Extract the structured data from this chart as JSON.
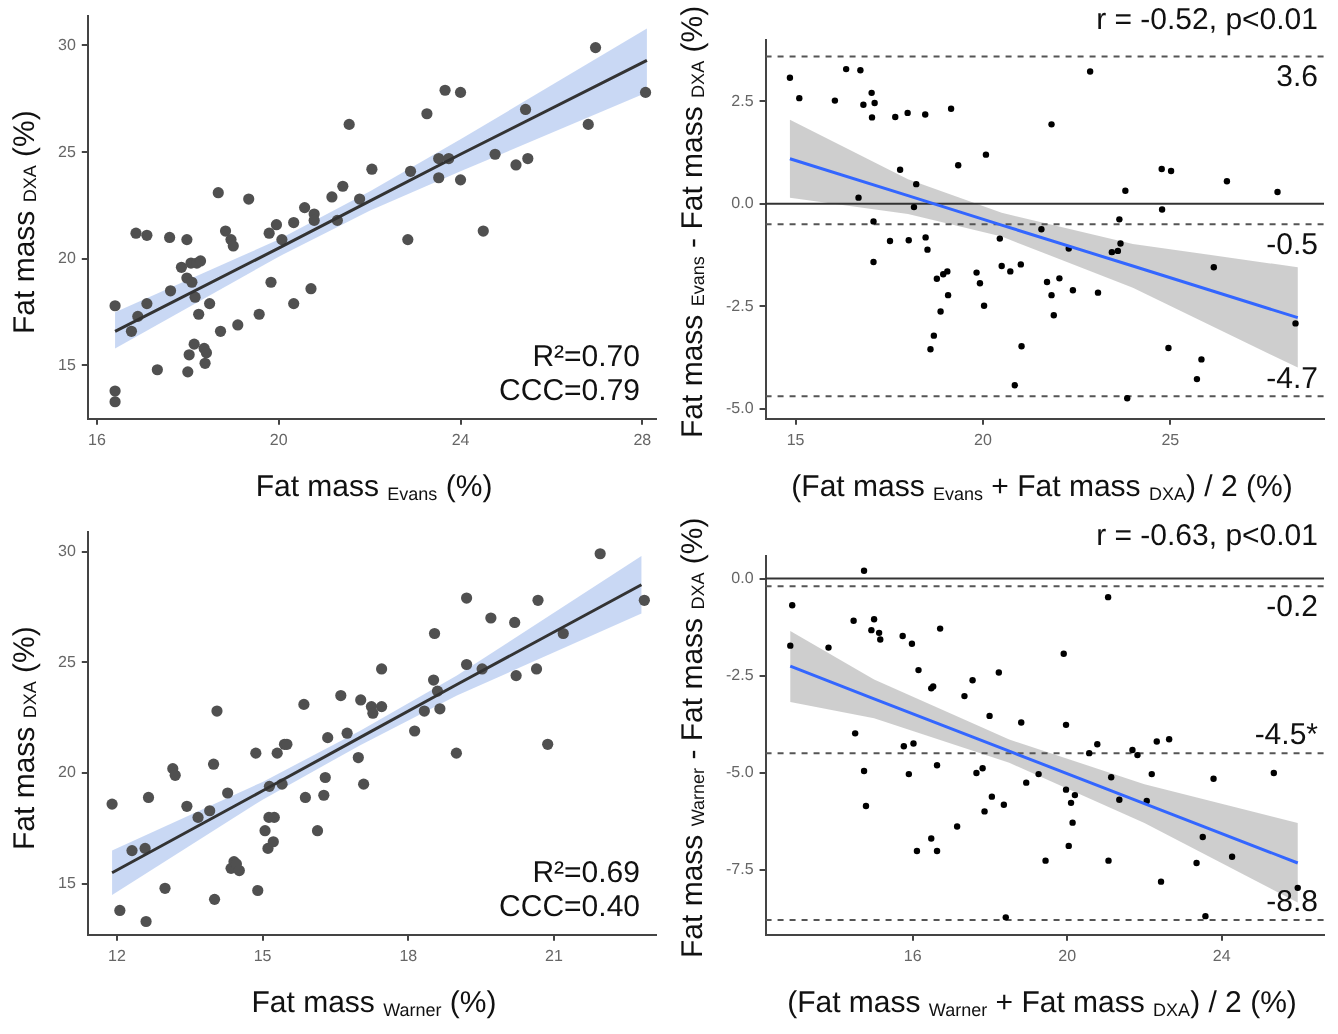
{
  "chart_data": [
    {
      "type": "scatter",
      "xlabel": "Fat mass $_{Evans}$ (%)",
      "ylabel": "Fat mass $_{DXA}$ (%)",
      "xlim": [
        15.8,
        28.3
      ],
      "ylim": [
        12.5,
        31.4
      ],
      "xticks": [
        16,
        20,
        24,
        28
      ],
      "yticks": [
        15,
        20,
        25,
        30
      ],
      "annotations": [
        "R²=0.70",
        "CCC=0.79"
      ],
      "series": [
        {
          "marker": "circle",
          "color": "#505050",
          "x": [
            16.4,
            16.4,
            16.4,
            16.76,
            16.86,
            16.9,
            17.1,
            17.1,
            17.33,
            17.6,
            17.62,
            17.86,
            17.98,
            17.98,
            18.0,
            18.03,
            18.07,
            18.09,
            18.14,
            18.16,
            18.2,
            18.24,
            18.28,
            18.36,
            18.38,
            18.41,
            18.48,
            18.67,
            18.72,
            18.83,
            18.95,
            19.0,
            19.1,
            19.34,
            19.57,
            19.79,
            19.83,
            19.95,
            20.07,
            20.33,
            20.33,
            20.57,
            20.71,
            20.78,
            20.78,
            21.17,
            21.29,
            21.41,
            21.55,
            21.78,
            22.05,
            22.84,
            22.9,
            23.26,
            23.52,
            23.52,
            23.66,
            23.74,
            24.0,
            24.0,
            24.5,
            24.76,
            25.22,
            25.43,
            25.48,
            26.81,
            26.97,
            28.07
          ],
          "values": [
            17.8,
            13.8,
            13.3,
            16.6,
            21.2,
            17.3,
            21.1,
            17.9,
            14.8,
            21.0,
            18.5,
            19.6,
            20.9,
            19.1,
            14.7,
            15.5,
            19.8,
            18.9,
            16.0,
            18.2,
            19.8,
            17.4,
            19.9,
            15.8,
            15.1,
            15.6,
            17.9,
            23.1,
            16.6,
            21.3,
            20.9,
            20.6,
            16.9,
            22.8,
            17.4,
            21.2,
            18.9,
            21.6,
            20.9,
            21.7,
            17.9,
            22.4,
            18.6,
            22.1,
            21.8,
            22.9,
            21.8,
            23.4,
            26.3,
            22.8,
            24.2,
            20.9,
            24.1,
            26.8,
            23.8,
            24.7,
            27.9,
            24.7,
            27.8,
            23.7,
            21.3,
            24.9,
            24.4,
            27.0,
            24.7,
            26.3,
            29.9,
            27.8
          ]
        },
        {
          "type": "line",
          "marker": "none",
          "color": "#333333",
          "x": [
            16.4,
            20,
            22,
            24,
            28.1
          ],
          "values": [
            16.6,
            20.5,
            22.7,
            24.9,
            29.3
          ],
          "lower": [
            15.8,
            20.1,
            22.25,
            24.1,
            27.8
          ],
          "upper": [
            17.5,
            20.9,
            23.15,
            25.6,
            30.8
          ]
        }
      ]
    },
    {
      "type": "scatter",
      "xlabel": "(Fat mass $_{Evans}$ + Fat mass $_{DXA}$) / 2 (%)",
      "ylabel": "Fat mass $_{Evans}$ - Fat mass $_{DXA}$ (%)",
      "xlim": [
        14.2,
        29.1
      ],
      "ylim": [
        -5.25,
        4.0
      ],
      "xticks": [
        15,
        20,
        25
      ],
      "yticks": [
        {
          "value": -5,
          "label": "-5.0"
        },
        {
          "value": -2.5,
          "label": "-2.5"
        },
        {
          "value": 0,
          "label": "0.0"
        },
        {
          "value": 2.5,
          "label": "2.5"
        }
      ],
      "annotations": [
        "r = -0.52, p<0.01"
      ],
      "ref_lines": [
        {
          "axis": "y",
          "value": 0,
          "line_style": "solid",
          "color": "#333333"
        },
        {
          "axis": "y",
          "value": 3.6,
          "label": "3.6",
          "line_style": "dashed",
          "color": "#555555"
        },
        {
          "axis": "y",
          "value": -0.5,
          "label": "-0.5",
          "line_style": "dashed",
          "color": "#555555"
        },
        {
          "axis": "y",
          "value": -4.7,
          "label": "-4.7",
          "line_style": "dashed",
          "color": "#555555"
        }
      ],
      "series": [
        {
          "marker": "circle",
          "color": "#000000",
          "x": [
            14.85,
            15.1,
            16.05,
            16.35,
            16.68,
            16.73,
            16.81,
            17.03,
            17.11,
            17.04,
            17.08,
            17.08,
            17.52,
            17.66,
            17.79,
            17.99,
            18.02,
            18.16,
            18.22,
            18.46,
            18.47,
            18.52,
            18.6,
            18.69,
            18.77,
            18.87,
            18.94,
            19.05,
            19.07,
            19.15,
            19.34,
            19.83,
            19.92,
            20.03,
            20.08,
            20.45,
            20.5,
            20.73,
            20.85,
            21.01,
            21.03,
            21.56,
            21.71,
            21.83,
            21.83,
            21.89,
            22.04,
            22.29,
            22.4,
            22.86,
            23.07,
            23.44,
            23.6,
            23.64,
            23.67,
            23.8,
            23.85,
            24.77,
            24.78,
            25.02,
            24.95,
            25.71,
            25.83,
            26.16,
            26.51,
            27.86,
            28.34
          ],
          "values": [
            3.08,
            2.58,
            2.52,
            3.29,
            0.15,
            3.26,
            2.42,
            2.71,
            2.46,
            2.11,
            -0.43,
            -1.42,
            -0.91,
            2.12,
            0.83,
            2.22,
            -0.89,
            -0.08,
            0.48,
            2.18,
            -0.82,
            -1.12,
            -3.55,
            -3.22,
            -1.83,
            -2.63,
            -1.72,
            -1.65,
            -2.23,
            2.32,
            0.94,
            -1.68,
            -1.94,
            -2.49,
            1.2,
            -0.85,
            -1.52,
            -1.65,
            -4.43,
            -1.48,
            -3.48,
            -0.62,
            -1.91,
            -2.23,
            1.94,
            -2.72,
            -1.82,
            -1.09,
            -2.11,
            3.23,
            -2.17,
            -1.18,
            -1.15,
            -0.38,
            -0.97,
            0.32,
            -4.75,
            0.85,
            -0.14,
            0.8,
            -3.52,
            -4.28,
            -3.8,
            -1.55,
            0.55,
            0.29,
            -2.92
          ]
        },
        {
          "type": "line",
          "marker": "none",
          "color": "#3366ff",
          "x": [
            14.85,
            18,
            20.5,
            24,
            28.4
          ],
          "values": [
            1.1,
            0.2,
            -0.52,
            -1.52,
            -2.78
          ],
          "lower": [
            0.15,
            -0.25,
            -0.8,
            -2.05,
            -4.0
          ],
          "upper": [
            2.05,
            0.6,
            -0.22,
            -0.98,
            -1.55
          ]
        }
      ]
    },
    {
      "type": "scatter",
      "xlabel": "Fat mass $_{Warner}$ (%)",
      "ylabel": "Fat mass $_{DXA}$ (%)",
      "xlim": [
        11.4,
        23.1
      ],
      "ylim": [
        12.7,
        30.9
      ],
      "xticks": [
        12,
        15,
        18,
        21
      ],
      "yticks": [
        15,
        20,
        25,
        30
      ],
      "annotations": [
        "R²=0.69",
        "CCC=0.40"
      ],
      "series": [
        {
          "marker": "circle",
          "color": "#505050",
          "x": [
            11.9,
            12.06,
            12.31,
            12.6,
            12.58,
            12.65,
            12.99,
            13.15,
            13.2,
            13.44,
            13.67,
            13.91,
            13.99,
            14.01,
            14.06,
            14.28,
            14.35,
            14.41,
            14.46,
            14.52,
            14.86,
            14.9,
            15.05,
            15.11,
            15.13,
            15.14,
            15.24,
            15.22,
            15.3,
            15.4,
            15.45,
            15.5,
            15.85,
            15.88,
            16.13,
            16.26,
            16.29,
            16.34,
            16.61,
            16.74,
            16.97,
            17.02,
            17.08,
            17.24,
            17.27,
            17.45,
            17.45,
            18.13,
            18.33,
            18.52,
            18.54,
            18.6,
            18.65,
            18.99,
            19.2,
            19.2,
            19.52,
            19.7,
            20.19,
            20.22,
            20.64,
            20.67,
            20.87,
            21.19,
            21.95,
            22.86
          ],
          "values": [
            18.6,
            13.8,
            16.5,
            13.3,
            16.6,
            18.9,
            14.8,
            20.2,
            19.9,
            18.5,
            18.0,
            18.3,
            20.4,
            14.3,
            22.8,
            19.1,
            15.7,
            16.0,
            15.9,
            15.6,
            20.9,
            14.7,
            17.4,
            16.6,
            18.0,
            19.4,
            18.0,
            16.9,
            20.9,
            19.5,
            21.3,
            21.3,
            23.1,
            18.9,
            17.4,
            19.0,
            19.8,
            21.6,
            23.5,
            21.8,
            20.7,
            23.3,
            19.5,
            23.0,
            22.7,
            23.0,
            24.7,
            21.9,
            22.8,
            24.2,
            26.3,
            23.7,
            22.9,
            20.9,
            27.9,
            24.9,
            24.7,
            27.0,
            26.8,
            24.4,
            24.7,
            27.8,
            21.3,
            26.3,
            29.9,
            27.8
          ]
        },
        {
          "type": "line",
          "marker": "none",
          "color": "#333333",
          "x": [
            11.9,
            15,
            17,
            19,
            22.8
          ],
          "values": [
            15.5,
            19.2,
            21.6,
            24.0,
            28.5
          ],
          "lower": [
            14.5,
            18.8,
            21.25,
            23.5,
            27.2
          ],
          "upper": [
            16.5,
            19.6,
            21.9,
            24.4,
            29.8
          ]
        }
      ]
    },
    {
      "type": "scatter",
      "xlabel": "(Fat mass $_{Warner}$ + Fat mass $_{DXA}$) / 2 (%)",
      "ylabel": "Fat mass $_{Warner}$ - Fat mass $_{DXA}$ (%)",
      "xlim": [
        12.19,
        26.65
      ],
      "ylim": [
        -9.18,
        0.58
      ],
      "xticks": [
        16,
        20,
        24
      ],
      "yticks": [
        {
          "value": -7.5,
          "label": "-7.5"
        },
        {
          "value": -5,
          "label": "-5.0"
        },
        {
          "value": -2.5,
          "label": "-2.5"
        },
        {
          "value": 0,
          "label": "0.0"
        }
      ],
      "annotations": [
        "r = -0.63, p<0.01"
      ],
      "ref_lines": [
        {
          "axis": "y",
          "value": 0,
          "line_style": "solid",
          "color": "#333333"
        },
        {
          "axis": "y",
          "value": -0.2,
          "label": "-0.2",
          "line_style": "dashed",
          "color": "#555555"
        },
        {
          "axis": "y",
          "value": -4.5,
          "label": "-4.5*",
          "line_style": "dashed",
          "color": "#555555"
        },
        {
          "axis": "y",
          "value": -8.8,
          "label": "-8.8",
          "line_style": "dashed",
          "color": "#555555"
        }
      ],
      "series": [
        {
          "marker": "circle",
          "color": "#000000",
          "x": [
            12.83,
            12.88,
            13.82,
            14.47,
            14.51,
            14.74,
            14.74,
            14.79,
            14.93,
            15.0,
            15.13,
            15.16,
            15.74,
            15.77,
            15.9,
            15.98,
            16.02,
            16.11,
            16.15,
            16.48,
            16.53,
            16.48,
            16.63,
            16.63,
            16.71,
            17.15,
            17.34,
            17.55,
            17.65,
            17.81,
            17.86,
            17.99,
            18.05,
            18.23,
            18.36,
            18.41,
            18.81,
            18.94,
            19.26,
            19.44,
            19.91,
            19.97,
            19.97,
            20.04,
            20.1,
            20.14,
            20.2,
            20.57,
            20.78,
            21.06,
            21.07,
            21.14,
            21.35,
            21.69,
            21.82,
            22.06,
            22.19,
            22.32,
            22.43,
            22.64,
            23.35,
            23.51,
            23.58,
            23.79,
            24.27,
            25.35,
            25.97
          ],
          "values": [
            -1.73,
            -0.69,
            -1.78,
            -1.09,
            -3.99,
            0.2,
            -4.96,
            -5.86,
            -1.33,
            -1.05,
            -1.4,
            -1.57,
            -1.48,
            -4.32,
            -5.04,
            -1.68,
            -4.25,
            -7.02,
            -2.36,
            -2.83,
            -2.78,
            -6.7,
            -4.81,
            -7.02,
            -1.29,
            -6.39,
            -3.03,
            -2.62,
            -5.01,
            -4.89,
            -6.0,
            -3.54,
            -5.62,
            -2.42,
            -5.83,
            -8.73,
            -3.71,
            -5.26,
            -5.04,
            -7.27,
            -1.94,
            -3.77,
            -5.44,
            -6.89,
            -5.78,
            -6.29,
            -5.58,
            -4.5,
            -4.27,
            -0.48,
            -7.27,
            -5.12,
            -5.7,
            -4.42,
            -4.55,
            -5.73,
            -5.04,
            -4.2,
            -7.81,
            -4.14,
            -7.33,
            -6.66,
            -8.7,
            -5.16,
            -7.17,
            -5.01,
            -7.97
          ]
        },
        {
          "type": "line",
          "marker": "none",
          "color": "#3366ff",
          "x": [
            12.83,
            15,
            18.5,
            22,
            25.97
          ],
          "values": [
            -2.26,
            -3.1,
            -4.45,
            -5.8,
            -7.33
          ],
          "lower": [
            -3.18,
            -3.6,
            -4.75,
            -6.3,
            -8.35
          ],
          "upper": [
            -1.35,
            -2.6,
            -4.15,
            -5.3,
            -6.3
          ]
        }
      ]
    }
  ]
}
